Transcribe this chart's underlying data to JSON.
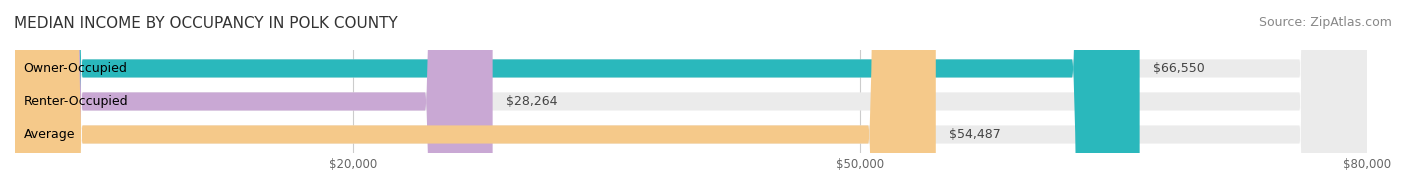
{
  "title": "MEDIAN INCOME BY OCCUPANCY IN POLK COUNTY",
  "source": "Source: ZipAtlas.com",
  "categories": [
    "Owner-Occupied",
    "Renter-Occupied",
    "Average"
  ],
  "values": [
    66550,
    28264,
    54487
  ],
  "labels": [
    "$66,550",
    "$28,264",
    "$54,487"
  ],
  "bar_colors": [
    "#2ab8bc",
    "#c9a8d4",
    "#f5c98a"
  ],
  "bar_bg_color": "#f0f0f0",
  "xlim": [
    0,
    80000
  ],
  "xticks": [
    0,
    20000,
    50000,
    80000
  ],
  "xtick_labels": [
    "",
    "$20,000",
    "$50,000",
    "$80,000"
  ],
  "background_color": "#ffffff",
  "title_fontsize": 11,
  "source_fontsize": 9,
  "label_fontsize": 9,
  "category_fontsize": 9,
  "bar_height": 0.55,
  "bar_bg_rounding": 0.3
}
